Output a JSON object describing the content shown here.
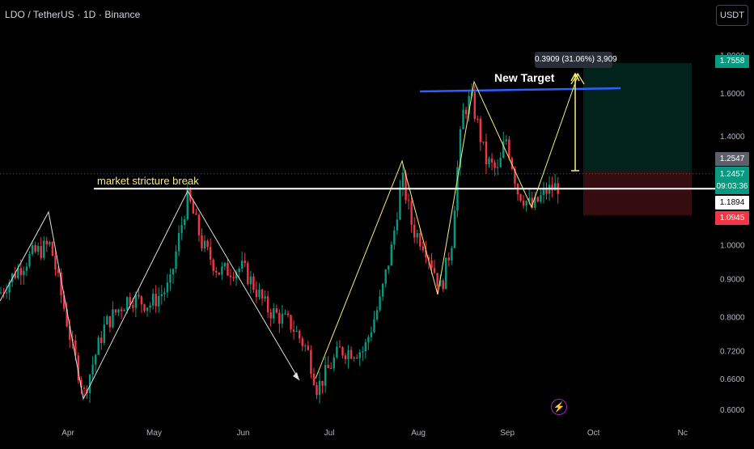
{
  "header": {
    "title": "LDO / TetherUS · 1D · Binance",
    "currency": "USDT"
  },
  "price_axis": {
    "ticks": [
      "1.8000",
      "1.6000",
      "1.4000",
      "1.0000",
      "0.9000",
      "0.8000",
      "0.7200",
      "0.6600",
      "0.6000"
    ],
    "scale": "log"
  },
  "price_tags": {
    "target": "1.7558",
    "entry": "1.2547",
    "last": "1.2457",
    "countdown": "09:03:36",
    "white_line": "1.1894",
    "stop": "1.0945"
  },
  "annotations": {
    "break_label": "market stricture break",
    "target_label": "New Target",
    "measure": "0.3909 (31.06%) 3,909"
  },
  "time_axis": {
    "labels": [
      "Apr",
      "May",
      "Jun",
      "Jul",
      "Aug",
      "Sep",
      "Oct",
      "Nc"
    ]
  },
  "colors": {
    "background": "#000000",
    "up": "#089981",
    "down": "#f23645",
    "annotation_yellow": "#f7ef7a",
    "target_line": "#2962ff",
    "break_line": "#ffffff"
  },
  "icons": {
    "flash": "lightning-bolt-icon"
  },
  "chart_data": {
    "type": "candlestick",
    "symbol": "LDO / TetherUS",
    "interval": "1D",
    "exchange": "Binance",
    "y_scale": "log",
    "ylim": [
      0.6,
      1.8
    ],
    "x_labels": [
      "Apr",
      "May",
      "Jun",
      "Jul",
      "Aug",
      "Sep",
      "Oct",
      "Nc"
    ],
    "key_points": [
      {
        "approx_date": "mid-Mar",
        "close": 0.98
      },
      {
        "approx_date": "early Apr",
        "close": 0.62
      },
      {
        "approx_date": "early May",
        "close": 1.17
      },
      {
        "approx_date": "late Jun",
        "close": 0.64
      },
      {
        "approx_date": "late Jul",
        "close": 1.25
      },
      {
        "approx_date": "early Aug",
        "close": 0.86
      },
      {
        "approx_date": "mid Aug",
        "close": 1.65
      },
      {
        "approx_date": "early Sep",
        "close": 1.12
      },
      {
        "approx_date": "mid Sep",
        "close": 1.2457
      }
    ],
    "levels": {
      "target": 1.7558,
      "entry": 1.2547,
      "last": 1.2457,
      "break_line": 1.1894,
      "stop": 1.0945
    }
  }
}
